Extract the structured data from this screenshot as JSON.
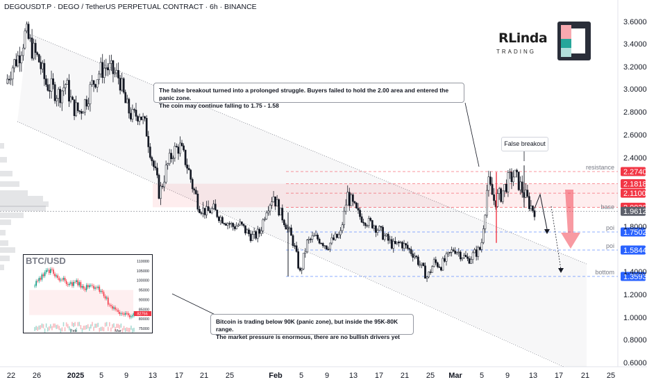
{
  "header": {
    "title": "DEGOUSDT.P · DEGO / TetherUS PERPETUAL CONTRACT · 6h · BINANCE"
  },
  "logo": {
    "name": "RLinda",
    "sub": "TRADING"
  },
  "chart_data": {
    "type": "candlestick",
    "symbol": "DEGOUSDT.P",
    "timeframe": "6h",
    "exchange": "BINANCE",
    "ylim": [
      0.6,
      3.6
    ],
    "y_ticks": [
      "3.6000",
      "3.4000",
      "3.2000",
      "3.0000",
      "2.8000",
      "2.6000",
      "2.4000",
      "1.8000",
      "1.4000",
      "1.2000",
      "1.0000",
      "0.8000",
      "0.6000"
    ],
    "x_ticks": [
      "22",
      "26",
      "2025",
      "5",
      "9",
      "13",
      "17",
      "21",
      "25",
      "Feb",
      "5",
      "9",
      "13",
      "17",
      "21",
      "25",
      "Mar",
      "5",
      "9",
      "13",
      "17",
      "21",
      "25"
    ],
    "price_path": [
      [
        0,
        3.05
      ],
      [
        2,
        3.2
      ],
      [
        4,
        3.3
      ],
      [
        6,
        3.5
      ],
      [
        8,
        3.35
      ],
      [
        10,
        3.25
      ],
      [
        12,
        3.05
      ],
      [
        14,
        3.0
      ],
      [
        16,
        2.95
      ],
      [
        18,
        3.05
      ],
      [
        20,
        2.85
      ],
      [
        22,
        2.8
      ],
      [
        24,
        2.9
      ],
      [
        26,
        3.05
      ],
      [
        28,
        3.15
      ],
      [
        30,
        3.2
      ],
      [
        32,
        3.15
      ],
      [
        34,
        3.1
      ],
      [
        36,
        2.85
      ],
      [
        38,
        2.75
      ],
      [
        40,
        2.8
      ],
      [
        42,
        2.65
      ],
      [
        44,
        2.35
      ],
      [
        46,
        2.1
      ],
      [
        48,
        2.3
      ],
      [
        50,
        2.45
      ],
      [
        52,
        2.5
      ],
      [
        54,
        2.35
      ],
      [
        56,
        2.15
      ],
      [
        58,
        2.0
      ],
      [
        60,
        1.95
      ],
      [
        62,
        1.98
      ],
      [
        64,
        1.9
      ],
      [
        66,
        1.85
      ],
      [
        68,
        1.8
      ],
      [
        70,
        1.82
      ],
      [
        72,
        1.75
      ],
      [
        74,
        1.7
      ],
      [
        76,
        1.75
      ],
      [
        78,
        2.0
      ],
      [
        80,
        2.1
      ],
      [
        82,
        1.95
      ],
      [
        84,
        1.8
      ],
      [
        86,
        1.65
      ],
      [
        88,
        1.38
      ],
      [
        90,
        1.65
      ],
      [
        92,
        1.7
      ],
      [
        94,
        1.68
      ],
      [
        96,
        1.62
      ],
      [
        98,
        1.68
      ],
      [
        100,
        1.72
      ],
      [
        102,
        2.1
      ],
      [
        104,
        2.0
      ],
      [
        106,
        1.9
      ],
      [
        108,
        1.85
      ],
      [
        110,
        1.82
      ],
      [
        112,
        1.75
      ],
      [
        114,
        1.68
      ],
      [
        116,
        1.62
      ],
      [
        118,
        1.65
      ],
      [
        120,
        1.6
      ],
      [
        122,
        1.55
      ],
      [
        124,
        1.45
      ],
      [
        126,
        1.35
      ],
      [
        128,
        1.48
      ],
      [
        130,
        1.45
      ],
      [
        132,
        1.52
      ],
      [
        134,
        1.6
      ],
      [
        136,
        1.55
      ],
      [
        138,
        1.5
      ],
      [
        140,
        1.55
      ],
      [
        142,
        1.6
      ],
      [
        144,
        2.2
      ],
      [
        146,
        2.05
      ],
      [
        148,
        2.1
      ],
      [
        150,
        2.2
      ],
      [
        152,
        2.25
      ],
      [
        154,
        2.15
      ],
      [
        156,
        2.05
      ],
      [
        158,
        1.96
      ]
    ],
    "levels": [
      {
        "label": "resistance",
        "value": 2.274,
        "text": "2.2740",
        "color": "#f23645"
      },
      {
        "label": "",
        "value": 2.1818,
        "text": "2.1818",
        "color": "#f23645"
      },
      {
        "label": "",
        "value": 2.11,
        "text": "2.1100",
        "color": "#f23645"
      },
      {
        "label": "",
        "value": 2.003,
        "text": "2.0030",
        "color": "#f23645"
      },
      {
        "label": "base",
        "value": 1.9612,
        "text": "1.9612",
        "color": "#5d606b"
      },
      {
        "label": "poi",
        "value": 1.7502,
        "text": "1.7502",
        "color": "#2962ff"
      },
      {
        "label": "poi",
        "value": 1.5844,
        "text": "1.5844",
        "color": "#2962ff"
      },
      {
        "label": "bottom",
        "value": 1.3593,
        "text": "1.3593",
        "color": "#2962ff"
      }
    ],
    "annotations": {
      "note_top": [
        "The false breakout turned into a prolonged struggle. Buyers failed to hold the 2.00 area and entered the panic zone.",
        "The coin may continue falling to 1.75 - 1.58"
      ],
      "note_bottom": [
        "Bitcoin is trading below 90K (panic zone), but inside the 95K-80K range.",
        "The market pressure is enormous, there are no bullish drivers yet"
      ],
      "false_breakout": "False breakout"
    },
    "inset": {
      "title": "BTC/USD",
      "y_ticks": [
        "110000",
        "105000",
        "100000",
        "95000",
        "90000",
        "85000",
        "80000",
        "75000"
      ],
      "x_ticks": [
        "Feb",
        "Mar"
      ],
      "price_tag": "82756",
      "price_path": [
        [
          0,
          97
        ],
        [
          3,
          100
        ],
        [
          6,
          104
        ],
        [
          9,
          105
        ],
        [
          12,
          102
        ],
        [
          15,
          100
        ],
        [
          18,
          98
        ],
        [
          21,
          99
        ],
        [
          24,
          97
        ],
        [
          27,
          96
        ],
        [
          30,
          97
        ],
        [
          33,
          95
        ],
        [
          36,
          91
        ],
        [
          38,
          86
        ],
        [
          40,
          86
        ],
        [
          42,
          83
        ],
        [
          44,
          81
        ],
        [
          46,
          84
        ],
        [
          48,
          82
        ],
        [
          50,
          82.7
        ]
      ]
    },
    "colors": {
      "up": "#089981",
      "down": "#f23645",
      "candle": "#131722",
      "channel": "#2a2e39"
    }
  }
}
